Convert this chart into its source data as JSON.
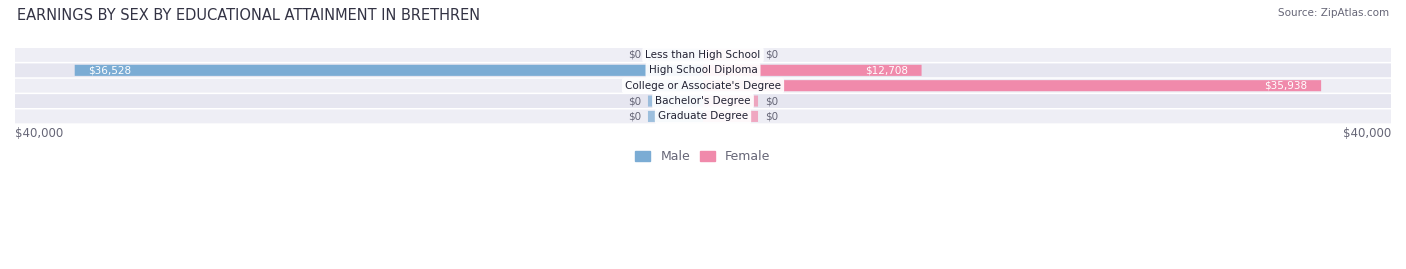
{
  "title": "EARNINGS BY SEX BY EDUCATIONAL ATTAINMENT IN BRETHREN",
  "source": "Source: ZipAtlas.com",
  "categories": [
    "Less than High School",
    "High School Diploma",
    "College or Associate's Degree",
    "Bachelor's Degree",
    "Graduate Degree"
  ],
  "male_values": [
    0,
    36528,
    0,
    0,
    0
  ],
  "female_values": [
    0,
    12708,
    35938,
    0,
    0
  ],
  "male_color": "#7bacd4",
  "female_color": "#f08aab",
  "max_value": 40000,
  "x_label_left": "$40,000",
  "x_label_right": "$40,000",
  "label_color": "#666677",
  "title_color": "#333344",
  "title_fontsize": 10.5,
  "legend_fontsize": 9.0,
  "row_colors": [
    "#eeeef5",
    "#e6e6f0"
  ]
}
